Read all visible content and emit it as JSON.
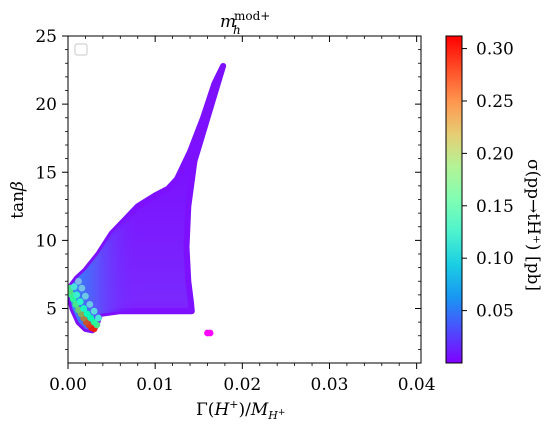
{
  "chart_data": {
    "type": "scatter",
    "title": "m_h^{mod+}",
    "title_main": "m",
    "title_sub": "h",
    "title_sup": "mod+",
    "xlabel": "Γ(H⁺)/M_{H⁺}",
    "ylabel": "tanβ",
    "colorbar_label": "σ(pp→tH⁺) [pb]",
    "xlim": [
      0.0,
      0.0405
    ],
    "ylim": [
      1.0,
      25.0
    ],
    "clim": [
      0.0,
      0.312
    ],
    "x_ticks": [
      0.0,
      0.01,
      0.02,
      0.03,
      0.04
    ],
    "x_tick_labels": [
      "0.00",
      "0.01",
      "0.02",
      "0.03",
      "0.04"
    ],
    "y_ticks": [
      5,
      10,
      15,
      20,
      25
    ],
    "y_tick_labels": [
      "5",
      "10",
      "15",
      "20",
      "25"
    ],
    "colorbar_ticks": [
      0.05,
      0.1,
      0.15,
      0.2,
      0.25,
      0.3
    ],
    "colorbar_tick_labels": [
      "0.05",
      "0.10",
      "0.15",
      "0.20",
      "0.25",
      "0.30"
    ],
    "colormap": "rainbow",
    "grid": false,
    "legend": "top-left, empty",
    "region_boundary": {
      "description": "outline of the filled scatter region (x = width ratio, y = tanβ)",
      "points": [
        [
          0.0178,
          22.8
        ],
        [
          0.016,
          19.0
        ],
        [
          0.0145,
          15.8
        ],
        [
          0.0138,
          12.5
        ],
        [
          0.0136,
          9.5
        ],
        [
          0.0138,
          7.0
        ],
        [
          0.0141,
          5.5
        ],
        [
          0.0142,
          4.8
        ],
        [
          0.006,
          4.8
        ],
        [
          0.0037,
          4.6
        ],
        [
          0.0032,
          3.7
        ],
        [
          0.0028,
          3.4
        ],
        [
          0.002,
          3.5
        ],
        [
          0.0012,
          4.0
        ],
        [
          0.0005,
          5.0
        ],
        [
          0.0001,
          6.2
        ],
        [
          0.0003,
          6.6
        ],
        [
          0.001,
          7.2
        ],
        [
          0.002,
          7.8
        ],
        [
          0.0035,
          9.0
        ],
        [
          0.005,
          10.5
        ],
        [
          0.0065,
          11.5
        ],
        [
          0.008,
          12.5
        ],
        [
          0.01,
          13.3
        ],
        [
          0.0115,
          13.8
        ],
        [
          0.0125,
          14.5
        ],
        [
          0.014,
          16.5
        ],
        [
          0.0155,
          19.0
        ],
        [
          0.0168,
          21.5
        ],
        [
          0.0178,
          22.8
        ]
      ]
    },
    "points": [
      {
        "x": 0.016,
        "y": 3.2,
        "c": 0.002
      },
      {
        "x": 0.0163,
        "y": 3.2,
        "c": 0.002
      },
      {
        "x": 0.003,
        "y": 3.5,
        "c": 0.3
      },
      {
        "x": 0.0027,
        "y": 3.6,
        "c": 0.3
      },
      {
        "x": 0.0024,
        "y": 3.8,
        "c": 0.29
      },
      {
        "x": 0.0021,
        "y": 4.0,
        "c": 0.28
      },
      {
        "x": 0.0018,
        "y": 4.3,
        "c": 0.26
      },
      {
        "x": 0.0015,
        "y": 4.6,
        "c": 0.24
      },
      {
        "x": 0.0012,
        "y": 4.9,
        "c": 0.22
      },
      {
        "x": 0.0009,
        "y": 5.3,
        "c": 0.2
      },
      {
        "x": 0.0006,
        "y": 5.7,
        "c": 0.18
      },
      {
        "x": 0.0004,
        "y": 6.0,
        "c": 0.19
      },
      {
        "x": 0.0002,
        "y": 6.3,
        "c": 0.21
      },
      {
        "x": 0.0002,
        "y": 6.5,
        "c": 0.2
      },
      {
        "x": 0.0033,
        "y": 3.8,
        "c": 0.2
      },
      {
        "x": 0.003,
        "y": 4.0,
        "c": 0.18
      },
      {
        "x": 0.0026,
        "y": 4.3,
        "c": 0.16
      },
      {
        "x": 0.0022,
        "y": 4.6,
        "c": 0.15
      },
      {
        "x": 0.0018,
        "y": 5.0,
        "c": 0.14
      },
      {
        "x": 0.0014,
        "y": 5.5,
        "c": 0.13
      },
      {
        "x": 0.001,
        "y": 6.0,
        "c": 0.12
      },
      {
        "x": 0.0007,
        "y": 6.6,
        "c": 0.11
      },
      {
        "x": 0.0035,
        "y": 4.3,
        "c": 0.11
      },
      {
        "x": 0.003,
        "y": 4.8,
        "c": 0.1
      },
      {
        "x": 0.0025,
        "y": 5.3,
        "c": 0.09
      },
      {
        "x": 0.002,
        "y": 5.9,
        "c": 0.09
      },
      {
        "x": 0.0016,
        "y": 6.5,
        "c": 0.085
      },
      {
        "x": 0.0012,
        "y": 7.0,
        "c": 0.08
      }
    ]
  }
}
